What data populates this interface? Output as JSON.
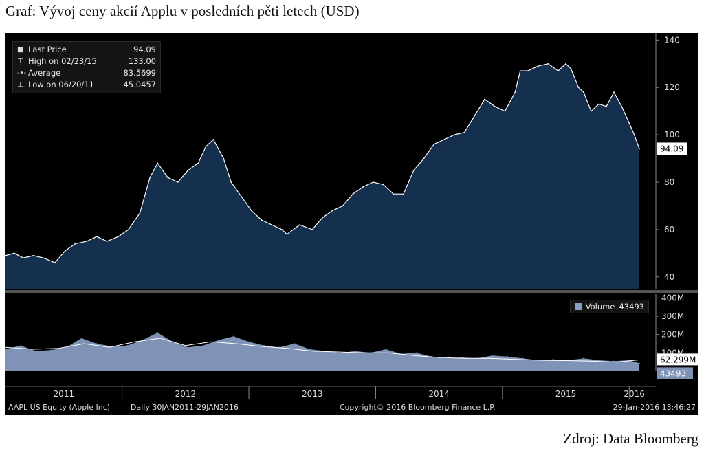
{
  "caption": "Graf: Vývoj ceny akcií Applu v posledních pěti letech (USD)",
  "source": "Zdroj: Data Bloomberg",
  "footer": {
    "ticker": "AAPL US Equity (Apple Inc)",
    "range": "Daily 30JAN2011-29JAN2016",
    "copyright": "Copyright© 2016 Bloomberg Finance L.P.",
    "timestamp": "29-Jan-2016 13:46:27"
  },
  "colors": {
    "background": "#000000",
    "price_fill": "#15304f",
    "price_line": "#ffffff",
    "volume_fill": "#7f93b6",
    "average_line": "#ffffff"
  },
  "chart_data": [
    {
      "type": "area",
      "title": "Graf: Vývoj ceny akcií Applu v posledních pěti letech (USD)",
      "x_ticks": [
        "2011",
        "2012",
        "2013",
        "2014",
        "2015",
        "2016"
      ],
      "y_ticks": [
        40,
        60,
        80,
        100,
        120,
        140
      ],
      "ylim": [
        35,
        143
      ],
      "xlim": [
        2011.08,
        2016.08
      ],
      "grid": false,
      "legend_position": "top-left",
      "legend": [
        {
          "icon": "square-icon",
          "label": "Last Price",
          "value": "94.09"
        },
        {
          "icon": "high-marker-icon",
          "label": "High on 02/23/15",
          "value": "133.00"
        },
        {
          "icon": "average-marker-icon",
          "label": "Average",
          "value": "83.5699"
        },
        {
          "icon": "low-marker-icon",
          "label": "Low on 06/20/11",
          "value": "45.0457"
        }
      ],
      "last_value_label": "94.09",
      "series": [
        {
          "name": "Last Price",
          "x": [
            2011.08,
            2011.15,
            2011.22,
            2011.3,
            2011.38,
            2011.47,
            2011.55,
            2011.63,
            2011.72,
            2011.8,
            2011.88,
            2011.97,
            2012.05,
            2012.14,
            2012.22,
            2012.28,
            2012.36,
            2012.44,
            2012.52,
            2012.6,
            2012.66,
            2012.72,
            2012.8,
            2012.86,
            2012.94,
            2013.02,
            2013.1,
            2013.18,
            2013.26,
            2013.3,
            2013.4,
            2013.5,
            2013.58,
            2013.66,
            2013.74,
            2013.82,
            2013.9,
            2013.98,
            2014.06,
            2014.14,
            2014.22,
            2014.3,
            2014.38,
            2014.46,
            2014.54,
            2014.62,
            2014.7,
            2014.78,
            2014.86,
            2014.94,
            2015.02,
            2015.1,
            2015.14,
            2015.2,
            2015.28,
            2015.36,
            2015.44,
            2015.5,
            2015.54,
            2015.6,
            2015.64,
            2015.7,
            2015.76,
            2015.82,
            2015.88,
            2015.94,
            2016.0,
            2016.04,
            2016.08
          ],
          "y": [
            49,
            50,
            48,
            49,
            48,
            46,
            51,
            54,
            55,
            57,
            55,
            57,
            60,
            67,
            82,
            88,
            82,
            80,
            85,
            88,
            95,
            98,
            90,
            80,
            74,
            68,
            64,
            62,
            60,
            58,
            62,
            60,
            65,
            68,
            70,
            75,
            78,
            80,
            79,
            75,
            75,
            85,
            90,
            96,
            98,
            100,
            101,
            108,
            115,
            112,
            110,
            118,
            127,
            127,
            129,
            130,
            127,
            130,
            128,
            120,
            118,
            110,
            113,
            112,
            118,
            112,
            105,
            100,
            94.09
          ]
        }
      ]
    },
    {
      "type": "area",
      "title": "",
      "y_ticks": [
        "100M",
        "200M",
        "300M",
        "400M"
      ],
      "ylim": [
        0,
        420
      ],
      "legend": [
        {
          "label": "Volume",
          "value": "43493"
        }
      ],
      "last_value_labels": [
        "62.299M",
        "43493"
      ],
      "series": [
        {
          "name": "Volume",
          "x": [
            2011.08,
            2011.2,
            2011.32,
            2011.44,
            2011.56,
            2011.68,
            2011.8,
            2011.92,
            2012.04,
            2012.16,
            2012.28,
            2012.4,
            2012.52,
            2012.64,
            2012.76,
            2012.88,
            2013.0,
            2013.12,
            2013.24,
            2013.36,
            2013.48,
            2013.6,
            2013.72,
            2013.84,
            2013.96,
            2014.08,
            2014.2,
            2014.32,
            2014.44,
            2014.56,
            2014.68,
            2014.8,
            2014.92,
            2015.04,
            2015.16,
            2015.28,
            2015.4,
            2015.52,
            2015.64,
            2015.76,
            2015.88,
            2016.0,
            2016.08
          ],
          "y": [
            120,
            140,
            110,
            115,
            130,
            180,
            150,
            135,
            140,
            170,
            210,
            160,
            130,
            140,
            170,
            190,
            160,
            140,
            130,
            150,
            120,
            110,
            100,
            110,
            100,
            120,
            95,
            100,
            80,
            70,
            75,
            70,
            85,
            80,
            70,
            60,
            65,
            60,
            70,
            60,
            55,
            60,
            43.5
          ]
        },
        {
          "name": "Average",
          "x": [
            2011.08,
            2011.3,
            2011.5,
            2011.7,
            2011.9,
            2012.1,
            2012.3,
            2012.5,
            2012.7,
            2012.9,
            2013.1,
            2013.3,
            2013.5,
            2013.7,
            2013.9,
            2014.1,
            2014.3,
            2014.5,
            2014.7,
            2014.9,
            2015.1,
            2015.3,
            2015.5,
            2015.7,
            2015.9,
            2016.08
          ],
          "y": [
            130,
            120,
            125,
            150,
            130,
            160,
            180,
            140,
            160,
            150,
            135,
            125,
            110,
            105,
            100,
            100,
            85,
            75,
            70,
            70,
            65,
            60,
            58,
            55,
            50,
            62.3
          ]
        }
      ]
    }
  ]
}
